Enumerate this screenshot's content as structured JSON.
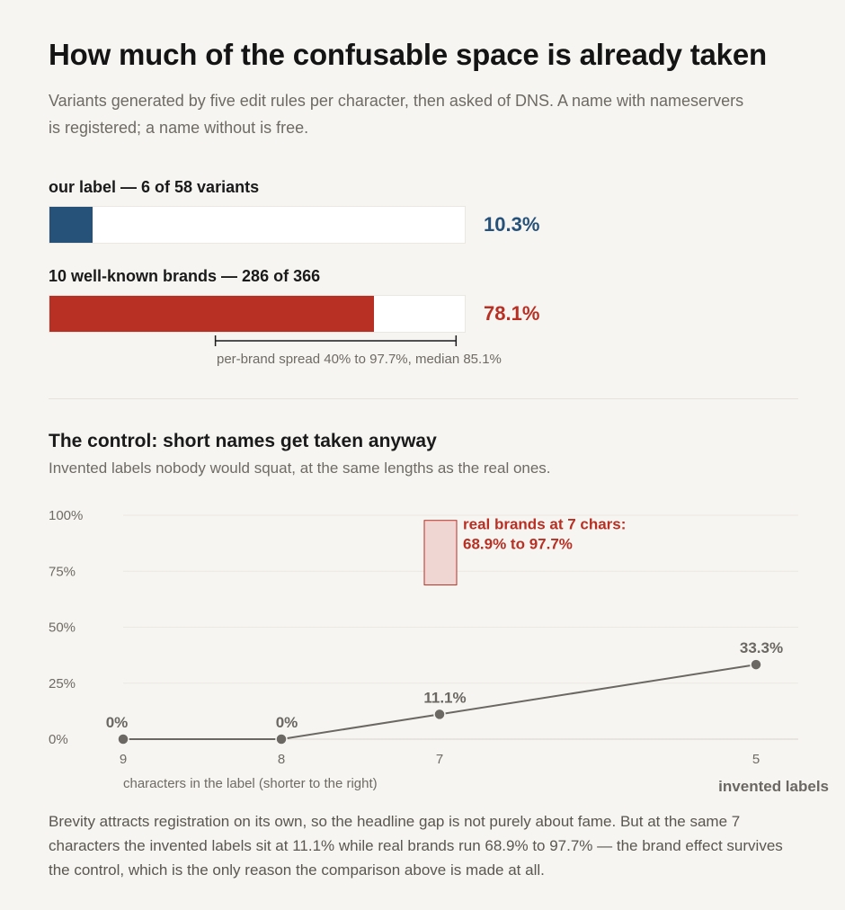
{
  "header": {
    "title": "How much of the confusable space is already taken",
    "subtitle": "Variants generated by five edit rules per character, then asked of DNS. A name with nameservers is registered; a name without is free."
  },
  "bars": [
    {
      "label": "our label — 6 of 58 variants",
      "value_text": "10.3%",
      "fraction": 0.103,
      "color": "#26527a"
    },
    {
      "label": "10 well-known brands — 286 of 366",
      "value_text": "78.1%",
      "fraction": 0.781,
      "color": "#b83024"
    }
  ],
  "spread": {
    "low": 0.4,
    "high": 0.977,
    "median": 0.851,
    "note": "per-brand spread 40% to 97.7%, median 85.1%"
  },
  "control": {
    "title": "The control: short names get taken anyway",
    "subtitle": "Invented labels nobody would squat, at the same lengths as the real ones."
  },
  "chart_data": {
    "type": "line",
    "x": [
      9,
      8,
      7,
      5
    ],
    "x_tick_labels": [
      "9",
      "8",
      "7",
      "5"
    ],
    "x_reversed": true,
    "xlabel": "characters in the label  (shorter to the right)",
    "ylim": [
      0,
      100
    ],
    "y_ticks": [
      0,
      25,
      50,
      75,
      100
    ],
    "y_tick_labels": [
      "0%",
      "25%",
      "50%",
      "75%",
      "100%"
    ],
    "grid": true,
    "series": [
      {
        "name": "invented labels",
        "values": [
          0,
          0,
          11.1,
          33.3
        ],
        "labels": [
          "0%",
          "0%",
          "11.1%",
          "33.3%"
        ],
        "color": "#6b6864"
      }
    ],
    "range_band": {
      "x": 7,
      "low": 68.9,
      "high": 97.7,
      "label_lines": [
        "real brands at 7 chars:",
        "68.9% to 97.7%"
      ],
      "color": "#b83024",
      "fill": "#f0d6d3"
    }
  },
  "footer": "Brevity attracts registration on its own, so the headline gap is not purely about fame. But at the same 7 characters the invented labels sit at 11.1% while real brands run 68.9% to 97.7% — the brand effect survives the control, which is the only reason the comparison above is made at all."
}
